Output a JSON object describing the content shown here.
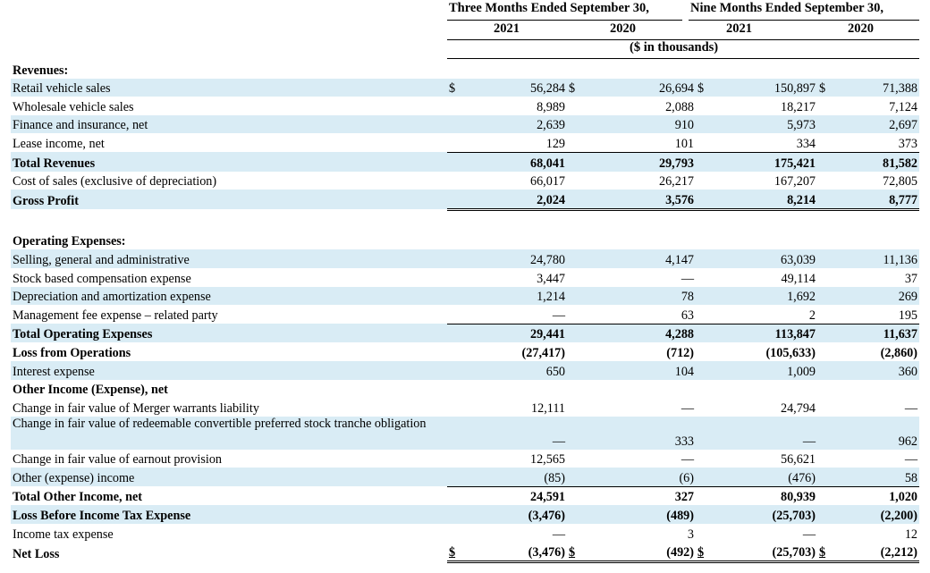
{
  "header": {
    "period1": "Three Months Ended September 30,",
    "period2": "Nine Months Ended September 30,",
    "years": [
      "2021",
      "2020",
      "2021",
      "2020"
    ],
    "units": "($ in thousands)"
  },
  "rows": [
    {
      "label": "Revenues:",
      "bold": true,
      "v": [
        "",
        "",
        "",
        ""
      ]
    },
    {
      "label": "Retail vehicle sales",
      "dollar": true,
      "v": [
        "56,284",
        "26,694",
        "150,897",
        "71,388"
      ]
    },
    {
      "label": "Wholesale vehicle sales",
      "v": [
        "8,989",
        "2,088",
        "18,217",
        "7,124"
      ]
    },
    {
      "label": "Finance and insurance, net",
      "v": [
        "2,639",
        "910",
        "5,973",
        "2,697"
      ]
    },
    {
      "label": "Lease income, net",
      "v": [
        "129",
        "101",
        "334",
        "373"
      ]
    },
    {
      "label": "Total Revenues",
      "bold": true,
      "v": [
        "68,041",
        "29,793",
        "175,421",
        "81,582"
      ]
    },
    {
      "label": "Cost of sales (exclusive of depreciation)",
      "v": [
        "66,017",
        "26,217",
        "167,207",
        "72,805"
      ]
    },
    {
      "label": "Gross Profit",
      "bold": true,
      "v": [
        "2,024",
        "3,576",
        "8,214",
        "8,777"
      ]
    },
    {
      "label": "Operating Expenses:",
      "bold": true,
      "v": [
        "",
        "",
        "",
        ""
      ]
    },
    {
      "label": "Selling, general and administrative",
      "v": [
        "24,780",
        "4,147",
        "63,039",
        "11,136"
      ]
    },
    {
      "label": "Stock based compensation expense",
      "v": [
        "3,447",
        "—",
        "49,114",
        "37"
      ]
    },
    {
      "label": "Depreciation and amortization expense",
      "v": [
        "1,214",
        "78",
        "1,692",
        "269"
      ]
    },
    {
      "label": "Management fee expense – related party",
      "v": [
        "—",
        "63",
        "2",
        "195"
      ]
    },
    {
      "label": "Total Operating Expenses",
      "bold": true,
      "v": [
        "29,441",
        "4,288",
        "113,847",
        "11,637"
      ]
    },
    {
      "label": "Loss from Operations",
      "bold": true,
      "v": [
        "(27,417)",
        "(712)",
        "(105,633)",
        "(2,860)"
      ]
    },
    {
      "label": "Interest expense",
      "v": [
        "650",
        "104",
        "1,009",
        "360"
      ]
    },
    {
      "label": "Other Income (Expense), net",
      "bold": true,
      "v": [
        "",
        "",
        "",
        ""
      ]
    },
    {
      "label": "Change in fair value of Merger warrants liability",
      "v": [
        "12,111",
        "—",
        "24,794",
        "—"
      ]
    },
    {
      "label": "Change in fair value of redeemable convertible preferred stock tranche obligation",
      "v": [
        "—",
        "333",
        "—",
        "962"
      ]
    },
    {
      "label": "Change in fair value of earnout provision",
      "v": [
        "12,565",
        "—",
        "56,621",
        "—"
      ]
    },
    {
      "label": "Other (expense) income",
      "v": [
        "(85)",
        "(6)",
        "(476)",
        "58"
      ]
    },
    {
      "label": "Total Other Income, net",
      "bold": true,
      "v": [
        "24,591",
        "327",
        "80,939",
        "1,020"
      ]
    },
    {
      "label": "Loss Before Income Tax Expense",
      "bold": true,
      "v": [
        "(3,476)",
        "(489)",
        "(25,703)",
        "(2,200)"
      ]
    },
    {
      "label": "Income tax expense",
      "v": [
        "—",
        "3",
        "—",
        "12"
      ]
    },
    {
      "label": "Net Loss",
      "bold": true,
      "dollar": true,
      "v": [
        "(3,476)",
        "(492)",
        "(25,703)",
        "(2,212)"
      ]
    }
  ],
  "currency_symbol": "$"
}
